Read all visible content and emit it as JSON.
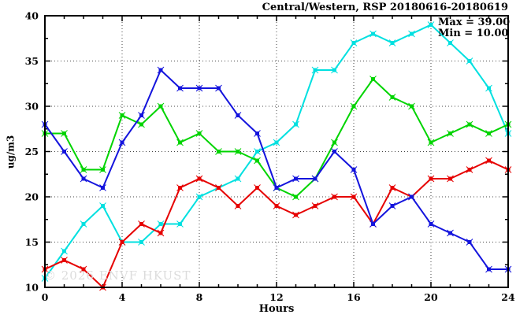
{
  "header": {
    "title": "Central/Western, RSP 20180616-20180619"
  },
  "legend": {
    "max": "Max = 39.00",
    "min": "Min = 10.00"
  },
  "watermark": "© 2026 ENVF HKUST",
  "axes": {
    "x_label": "Hours",
    "y_label": "ug/m3"
  },
  "chart_data": {
    "type": "line",
    "title": "Central/Western, RSP 20180616-20180619",
    "xlabel": "Hours",
    "ylabel": "ug/m3",
    "xlim": [
      0,
      24
    ],
    "ylim": [
      10,
      40
    ],
    "x_major_ticks": [
      0,
      4,
      8,
      12,
      16,
      20,
      24
    ],
    "y_major_ticks": [
      10,
      15,
      20,
      25,
      30,
      35,
      40
    ],
    "x_minor_step": 1,
    "y_minor_step": 2.5,
    "grid": true,
    "legend_position": "top-right-inside",
    "annotations": [
      "Max = 39.00",
      "Min = 10.00"
    ],
    "max_value": 39.0,
    "min_value": 10.0,
    "x": [
      0,
      1,
      2,
      3,
      4,
      5,
      6,
      7,
      8,
      9,
      10,
      11,
      12,
      13,
      14,
      15,
      16,
      17,
      18,
      19,
      20,
      21,
      22,
      23,
      24
    ],
    "series": [
      {
        "name": "cyan-line",
        "color": "#00e0e0",
        "values": [
          11,
          14,
          17,
          19,
          15,
          15,
          17,
          17,
          20,
          21,
          22,
          25,
          26,
          28,
          34,
          34,
          37,
          38,
          37,
          38,
          39,
          37,
          35,
          32,
          27
        ]
      },
      {
        "name": "green-line",
        "color": "#00d400",
        "values": [
          27,
          27,
          23,
          23,
          29,
          28,
          30,
          26,
          27,
          25,
          25,
          24,
          21,
          20,
          22,
          26,
          30,
          33,
          31,
          30,
          26,
          27,
          28,
          27,
          28
        ]
      },
      {
        "name": "red-line",
        "color": "#e60000",
        "values": [
          12,
          13,
          12,
          10,
          15,
          17,
          16,
          21,
          22,
          21,
          19,
          21,
          19,
          18,
          19,
          20,
          20,
          17,
          21,
          20,
          22,
          22,
          23,
          24,
          23
        ]
      },
      {
        "name": "blue-line",
        "color": "#1414dd",
        "values": [
          28,
          25,
          22,
          21,
          26,
          29,
          34,
          32,
          32,
          32,
          29,
          27,
          21,
          22,
          22,
          25,
          23,
          17,
          19,
          20,
          17,
          16,
          15,
          12,
          12
        ]
      }
    ]
  }
}
